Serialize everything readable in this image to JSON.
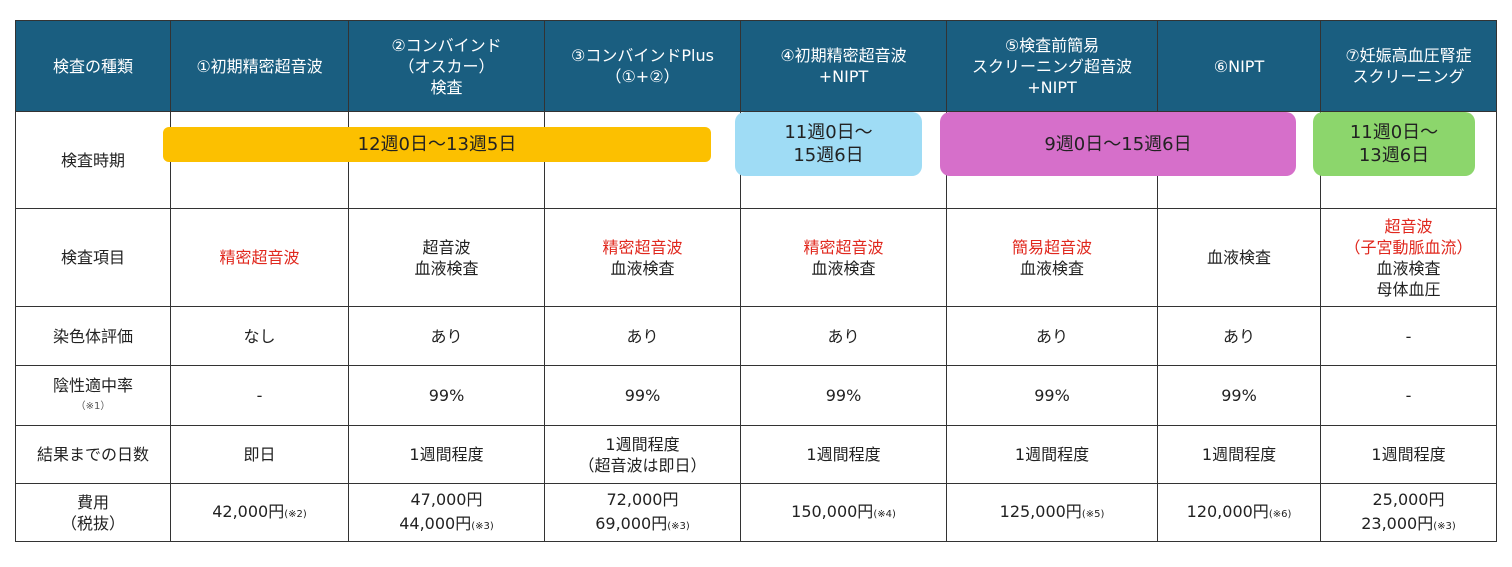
{
  "headers": [
    "検査の種類",
    "①初期精密超音波",
    "②コンバインド\n（オスカー）\n検査",
    "③コンバインドPlus\n（①+②）",
    "④初期精密超音波\n+NIPT",
    "⑤検査前簡易\nスクリーニング超音波\n+NIPT",
    "⑥NIPT",
    "⑦妊娠高血圧腎症\nスクリーニング"
  ],
  "rows": {
    "timing": {
      "label": "検査時期",
      "periods": [
        {
          "text": "12週0日〜13週5日",
          "color": "#fcc000",
          "columns": "①〜③"
        },
        {
          "text": "11週0日〜\n15週6日",
          "color": "#9fdcf5",
          "columns": "④"
        },
        {
          "text": "9週0日〜15週6日",
          "color": "#d66fca",
          "columns": "⑤〜⑥"
        },
        {
          "text": "11週0日〜\n13週6日",
          "color": "#8cd66c",
          "columns": "⑦"
        }
      ]
    },
    "items": {
      "label": "検査項目",
      "cells": [
        [
          {
            "t": "精密超音波",
            "red": true
          }
        ],
        [
          {
            "t": "超音波"
          },
          {
            "t": "血液検査"
          }
        ],
        [
          {
            "t": "精密超音波",
            "red": true
          },
          {
            "t": "血液検査"
          }
        ],
        [
          {
            "t": "精密超音波",
            "red": true
          },
          {
            "t": "血液検査"
          }
        ],
        [
          {
            "t": "簡易超音波",
            "red": true
          },
          {
            "t": "血液検査"
          }
        ],
        [
          {
            "t": "血液検査"
          }
        ],
        [
          {
            "t": "超音波",
            "red": true
          },
          {
            "t": "（子宮動脈血流）",
            "red": true
          },
          {
            "t": "血液検査"
          },
          {
            "t": "母体血圧"
          }
        ]
      ]
    },
    "chromosome": {
      "label": "染色体評価",
      "cells": [
        "なし",
        "あり",
        "あり",
        "あり",
        "あり",
        "あり",
        "-"
      ]
    },
    "accuracy": {
      "label": "陰性適中率",
      "label_note": "（※1）",
      "cells": [
        "-",
        "99%",
        "99%",
        "99%",
        "99%",
        "99%",
        "-"
      ]
    },
    "days": {
      "label": "結果までの日数",
      "cells": [
        "即日",
        "1週間程度",
        "1週間程度\n（超音波は即日）",
        "1週間程度",
        "1週間程度",
        "1週間程度",
        "1週間程度"
      ]
    },
    "cost": {
      "label": "費用\n（税抜）",
      "cells": [
        [
          {
            "t": "42,000円",
            "n": "(※2)"
          }
        ],
        [
          {
            "t": "47,000円",
            "n": ""
          },
          {
            "t": "44,000円",
            "n": "(※3)"
          }
        ],
        [
          {
            "t": "72,000円",
            "n": ""
          },
          {
            "t": "69,000円",
            "n": "(※3)"
          }
        ],
        [
          {
            "t": "150,000円",
            "n": "(※4)"
          }
        ],
        [
          {
            "t": "125,000円",
            "n": "(※5)"
          }
        ],
        [
          {
            "t": "120,000円",
            "n": "(※6)"
          }
        ],
        [
          {
            "t": "25,000円",
            "n": ""
          },
          {
            "t": "23,000円",
            "n": "(※3)"
          }
        ]
      ]
    }
  },
  "colors": {
    "header_bg": "#1a5e80",
    "red_text": "#e0281e"
  }
}
